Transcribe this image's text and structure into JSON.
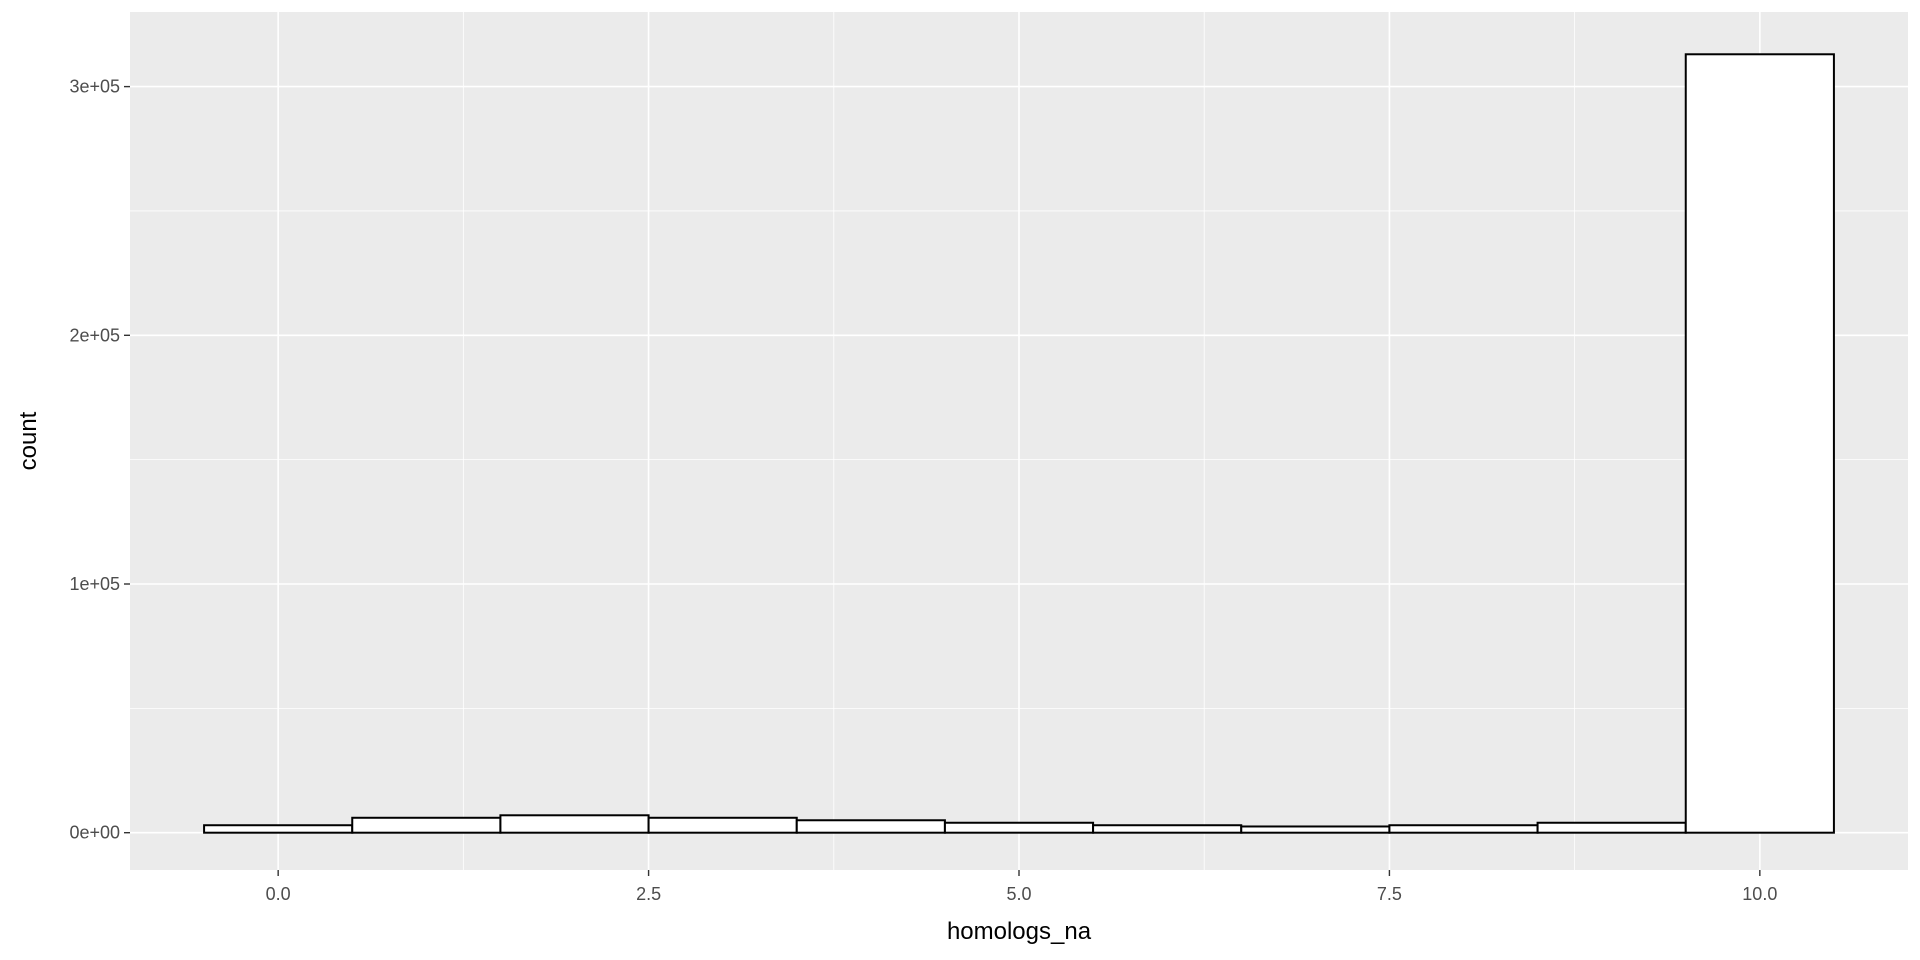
{
  "chart_data": {
    "type": "bar",
    "subtype": "histogram",
    "title": "",
    "xlabel": "homologs_na",
    "ylabel": "count",
    "x": [
      0,
      1,
      2,
      3,
      4,
      5,
      6,
      7,
      8,
      9,
      10
    ],
    "values": [
      3000,
      6000,
      7000,
      6000,
      5000,
      4000,
      3000,
      2500,
      3000,
      4000,
      313000
    ],
    "bin_width": 1,
    "xlim": [
      -1.0,
      11.0
    ],
    "ylim": [
      -15000,
      330000
    ],
    "x_ticks": [
      {
        "value": 0.0,
        "label": "0.0"
      },
      {
        "value": 2.5,
        "label": "2.5"
      },
      {
        "value": 5.0,
        "label": "5.0"
      },
      {
        "value": 7.5,
        "label": "7.5"
      },
      {
        "value": 10.0,
        "label": "10.0"
      }
    ],
    "y_ticks": [
      {
        "value": 0,
        "label": "0e+00"
      },
      {
        "value": 100000,
        "label": "1e+05"
      },
      {
        "value": 200000,
        "label": "2e+05"
      },
      {
        "value": 300000,
        "label": "3e+05"
      }
    ],
    "grid": true,
    "legend": "none",
    "colors": {
      "panel_background": "#ebebeb",
      "grid": "#ffffff",
      "bar_fill": "#ffffff",
      "bar_outline": "#000000",
      "tick_text": "#4d4d4d",
      "axis_title": "#000000"
    }
  }
}
